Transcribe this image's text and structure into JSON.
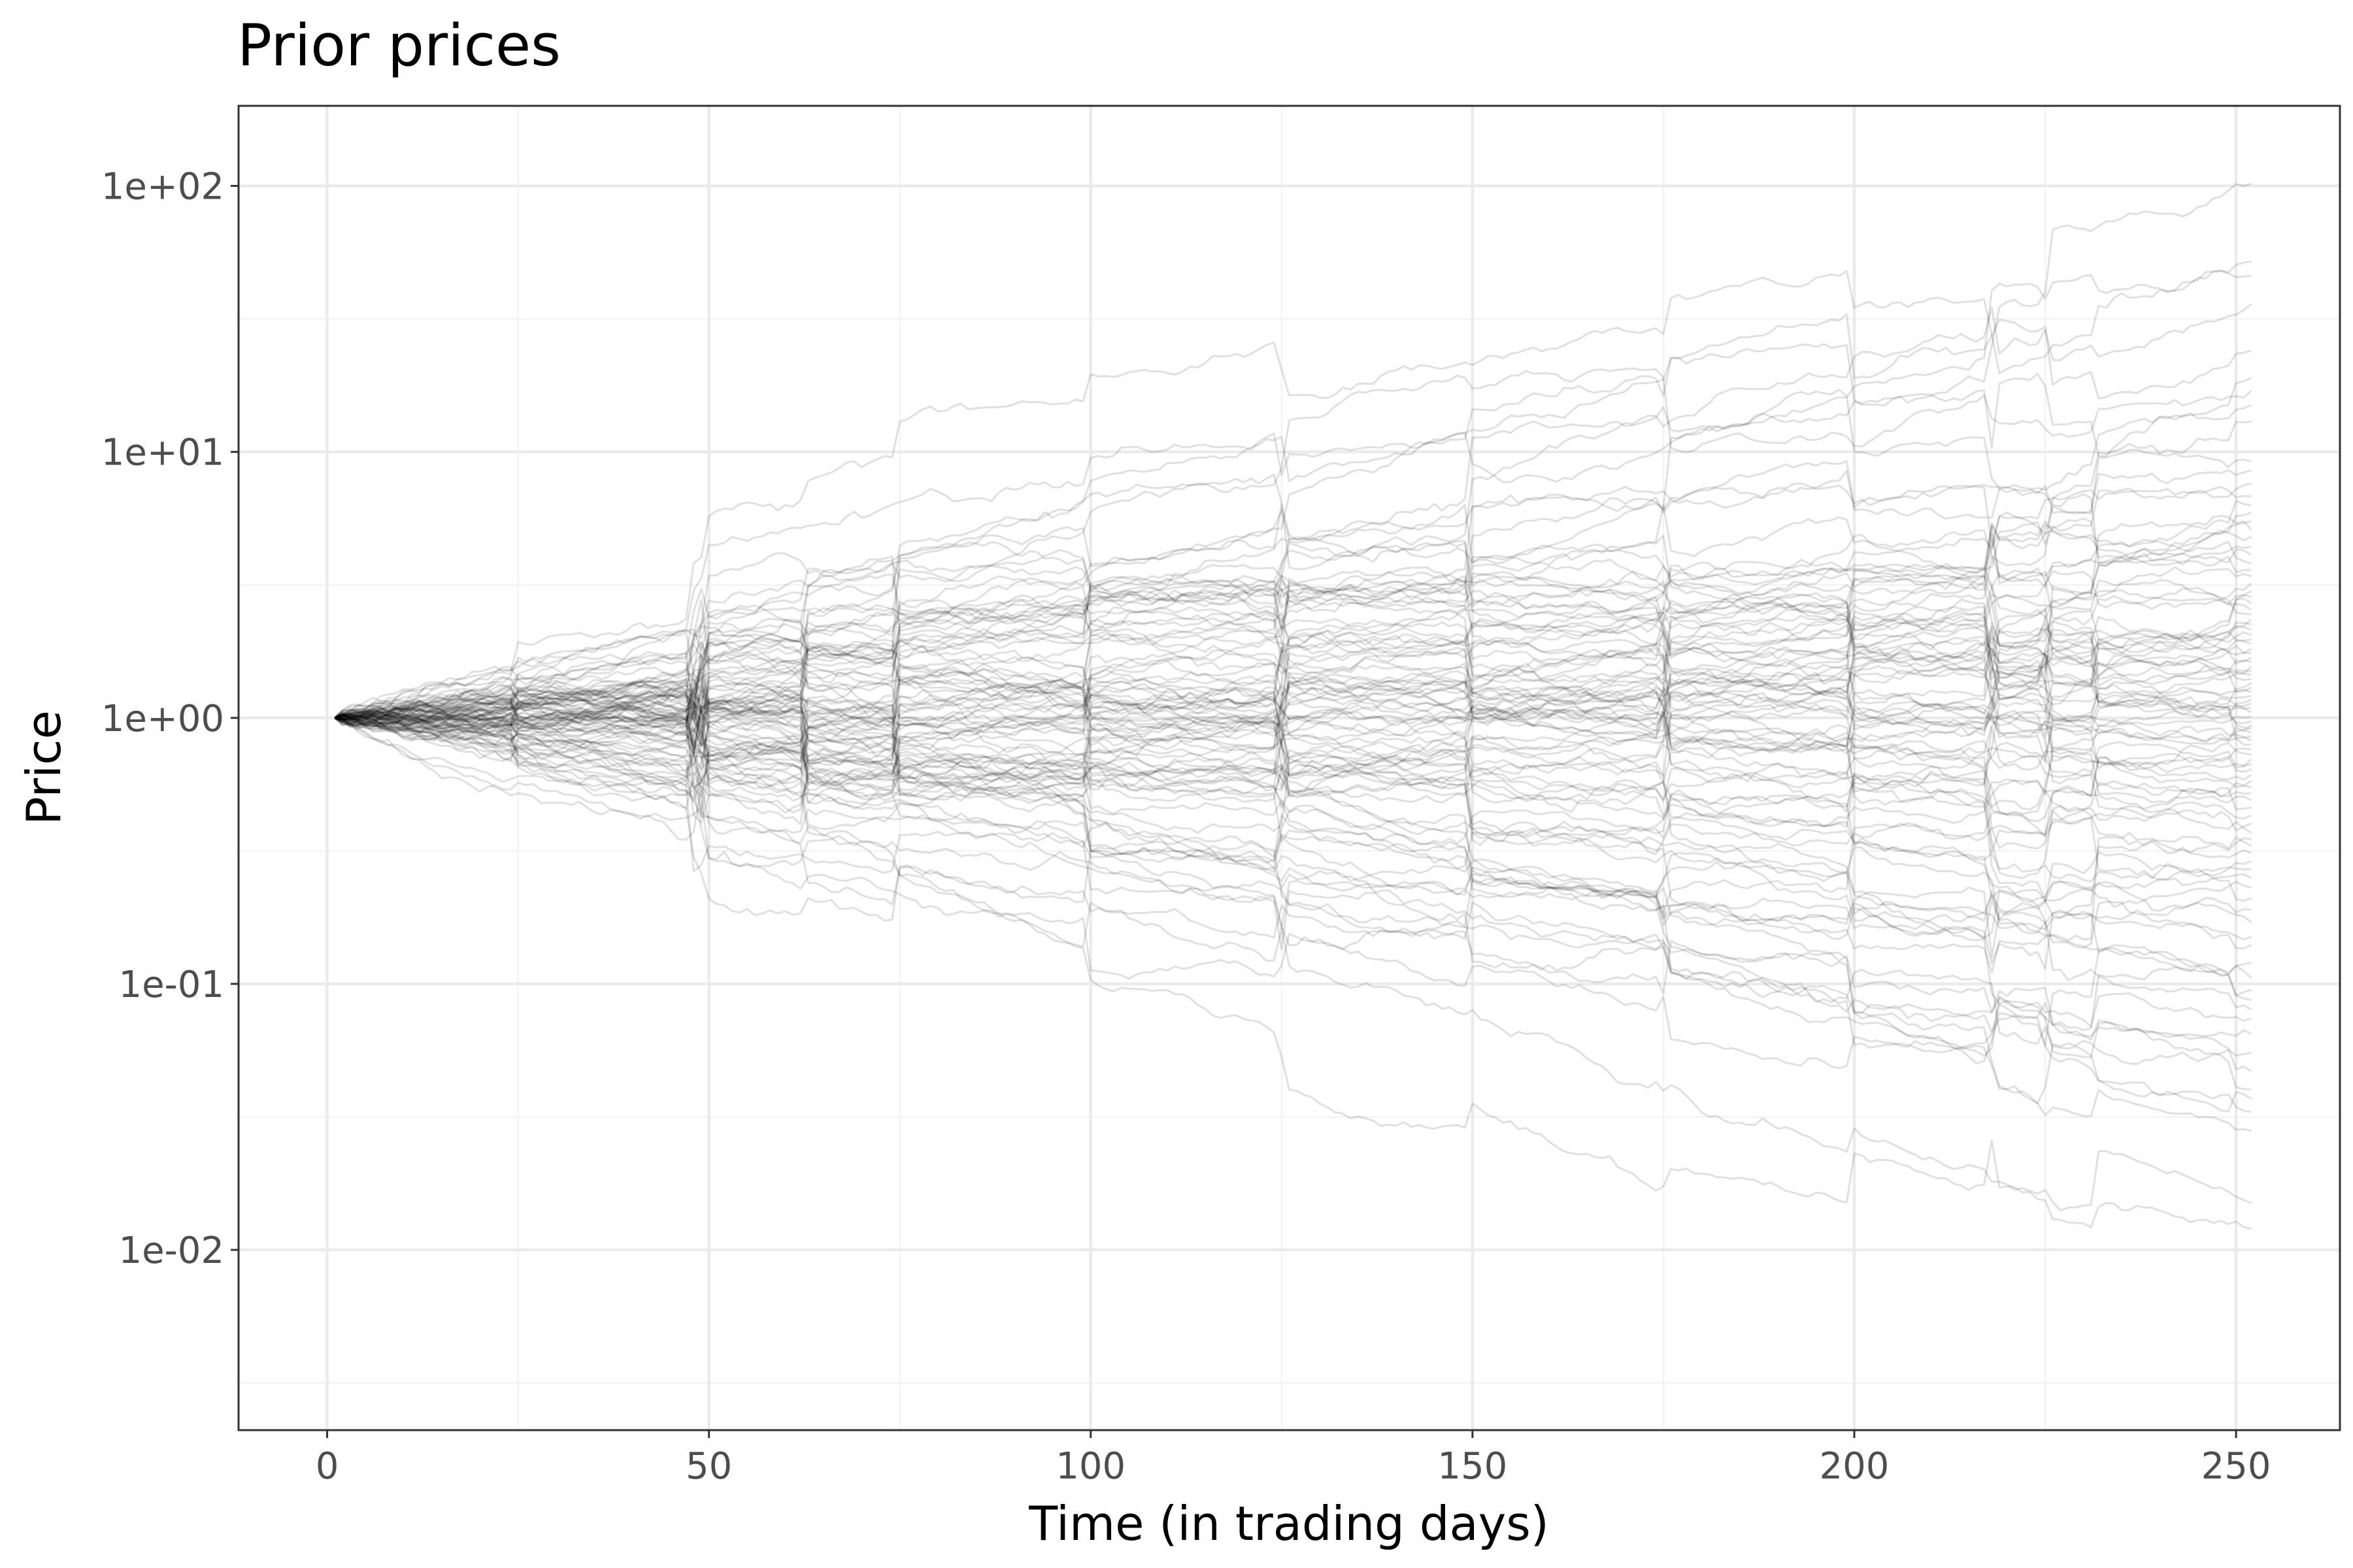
{
  "chart_data": {
    "type": "line",
    "title": "Prior prices",
    "xlabel": "Time (in trading days)",
    "ylabel": "Price",
    "xlim": [
      -11.6,
      263.6
    ],
    "ylim": [
      0.0021,
      200
    ],
    "y_scale": "log10",
    "x_ticks": [
      0,
      50,
      100,
      150,
      200,
      250
    ],
    "x_tick_labels": [
      "0",
      "50",
      "100",
      "150",
      "200",
      "250"
    ],
    "y_ticks": [
      0.01,
      0.1,
      1,
      10,
      100
    ],
    "y_tick_labels": [
      "1e-02",
      "1e-01",
      "1e+00",
      "1e+01",
      "1e+02"
    ],
    "grid": true,
    "legend": "none",
    "line_color": "#000000",
    "series_count": 100,
    "start_day": 1,
    "end_day": 252,
    "start_price": 1,
    "series_final_prices": [
      102,
      52,
      46,
      36,
      24,
      19,
      17,
      15,
      13,
      9.2,
      8.5,
      7.6,
      6.8,
      6.3,
      5.9,
      5.5,
      5.1,
      4.8,
      4.4,
      4.1,
      3.8,
      3.6,
      3.4,
      3.2,
      3.0,
      2.85,
      2.7,
      2.55,
      2.45,
      2.35,
      2.25,
      2.15,
      2.05,
      1.97,
      1.9,
      1.82,
      1.75,
      1.68,
      1.62,
      1.56,
      1.5,
      1.45,
      1.4,
      1.35,
      1.3,
      1.25,
      1.21,
      1.17,
      1.13,
      1.09,
      1.05,
      1.01,
      0.97,
      0.94,
      0.91,
      0.88,
      0.85,
      0.82,
      0.79,
      0.76,
      0.73,
      0.7,
      0.67,
      0.64,
      0.61,
      0.58,
      0.55,
      0.52,
      0.49,
      0.46,
      0.43,
      0.4,
      0.37,
      0.35,
      0.33,
      0.31,
      0.29,
      0.27,
      0.25,
      0.23,
      0.21,
      0.19,
      0.17,
      0.15,
      0.14,
      0.12,
      0.105,
      0.095,
      0.087,
      0.08,
      0.074,
      0.065,
      0.055,
      0.047,
      0.04,
      0.037,
      0.033,
      0.028,
      0.015,
      0.012
    ]
  }
}
